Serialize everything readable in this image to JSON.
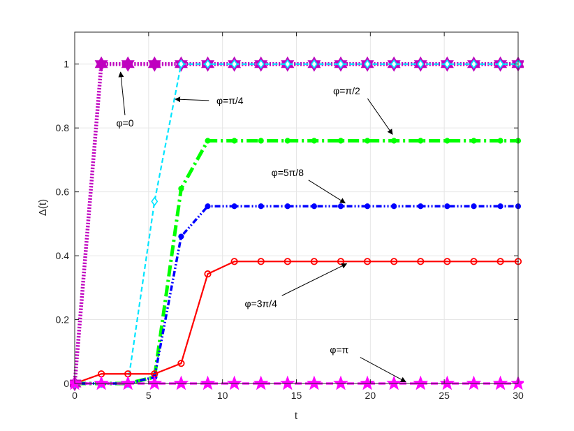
{
  "chart_data": {
    "type": "line",
    "xlabel": "t",
    "ylabel": "Δ(t)",
    "xlim": [
      0,
      30
    ],
    "ylim": [
      0,
      1.1
    ],
    "xticks": [
      0,
      5,
      10,
      15,
      20,
      25,
      30
    ],
    "xtick_labels": [
      "0",
      "5",
      "10",
      "15",
      "20",
      "25",
      "30"
    ],
    "yticks": [
      0,
      0.2,
      0.4,
      0.6,
      0.8,
      1
    ],
    "ytick_labels": [
      "0",
      "0.2",
      "0.4",
      "0.6",
      "0.8",
      "1"
    ],
    "grid": true,
    "x": [
      0,
      1.8,
      3.6,
      5.4,
      7.2,
      9.0,
      10.8,
      12.6,
      14.4,
      16.2,
      18.0,
      19.8,
      21.6,
      23.4,
      25.2,
      27.0,
      28.8,
      30.0
    ],
    "series": [
      {
        "name": "φ=0",
        "color": "#bf00bf",
        "line_style": "dotted",
        "marker": "hexagram",
        "values": [
          0,
          1,
          1,
          1,
          1,
          1,
          1,
          1,
          1,
          1,
          1,
          1,
          1,
          1,
          1,
          1,
          1,
          1
        ]
      },
      {
        "name": "φ=π/4",
        "color": "#00e5ff",
        "line_style": "dashed",
        "marker": "diamond",
        "values": [
          0,
          0,
          0,
          0.57,
          1,
          1,
          1,
          1,
          1,
          1,
          1,
          1,
          1,
          1,
          1,
          1,
          1,
          1
        ]
      },
      {
        "name": "φ=π/2",
        "color": "#00ff00",
        "line_style": "dashdot",
        "marker": "circle",
        "values": [
          0,
          0,
          0,
          0.02,
          0.61,
          0.76,
          0.76,
          0.76,
          0.76,
          0.76,
          0.76,
          0.76,
          0.76,
          0.76,
          0.76,
          0.76,
          0.76,
          0.76
        ]
      },
      {
        "name": "φ=5π/8",
        "color": "#0000ff",
        "line_style": "dotted",
        "marker": "circle",
        "values": [
          0,
          0,
          0,
          0.02,
          0.46,
          0.555,
          0.555,
          0.555,
          0.555,
          0.555,
          0.555,
          0.555,
          0.555,
          0.555,
          0.555,
          0.555,
          0.555,
          0.555
        ]
      },
      {
        "name": "φ=3π/4",
        "color": "#ff0000",
        "line_style": "solid",
        "marker": "open-circle",
        "values": [
          0,
          0.03,
          0.03,
          0.03,
          0.063,
          0.343,
          0.382,
          0.382,
          0.382,
          0.382,
          0.382,
          0.382,
          0.382,
          0.382,
          0.382,
          0.382,
          0.382,
          0.382
        ]
      },
      {
        "name": "φ=π",
        "color": "#ff00ff",
        "line_style": "dashed",
        "marker": "pentagram",
        "values": [
          0,
          0,
          0,
          0,
          0,
          0,
          0,
          0,
          0,
          0,
          0,
          0,
          0,
          0,
          0,
          0,
          0,
          0
        ]
      }
    ],
    "annotations": [
      {
        "text": "φ=0",
        "text_x": 3.4,
        "text_y": 0.805,
        "arrow_to_x": 3.1,
        "arrow_to_y": 0.975
      },
      {
        "text": "φ=π/4",
        "text_x": 10.5,
        "text_y": 0.875,
        "arrow_to_x": 6.8,
        "arrow_to_y": 0.89
      },
      {
        "text": "φ=π/2",
        "text_x": 18.4,
        "text_y": 0.905,
        "arrow_to_x": 21.5,
        "arrow_to_y": 0.78
      },
      {
        "text": "φ=5π/8",
        "text_x": 14.4,
        "text_y": 0.65,
        "arrow_to_x": 18.3,
        "arrow_to_y": 0.565
      },
      {
        "text": "φ=3π/4",
        "text_x": 12.6,
        "text_y": 0.24,
        "arrow_to_x": 18.4,
        "arrow_to_y": 0.375
      },
      {
        "text": "φ=π",
        "text_x": 17.9,
        "text_y": 0.095,
        "arrow_to_x": 22.4,
        "arrow_to_y": 0.005
      }
    ]
  }
}
